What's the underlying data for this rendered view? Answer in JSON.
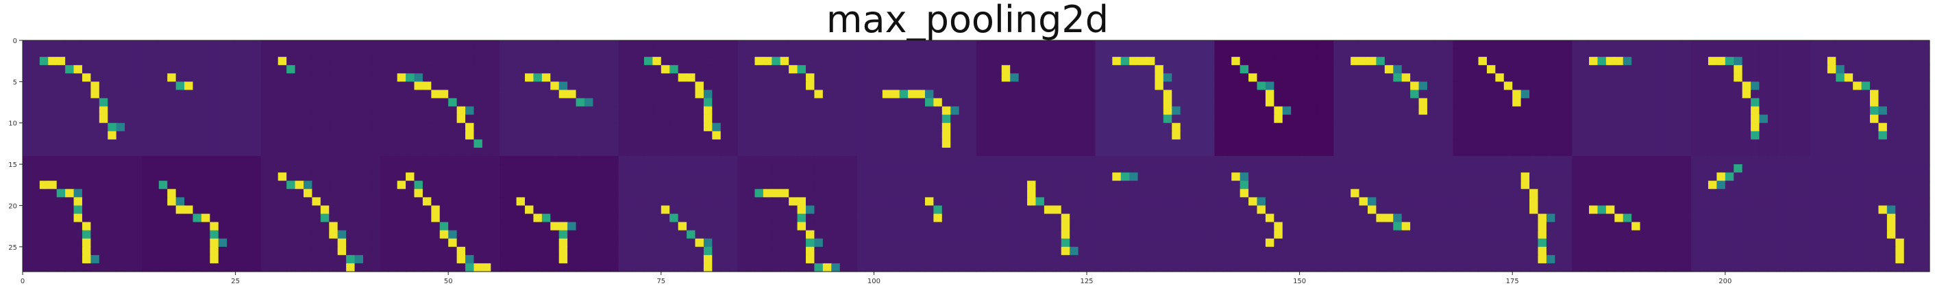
{
  "chart_data": {
    "type": "heatmap",
    "title": "max_pooling2d",
    "xlabel": "",
    "ylabel": "",
    "layer": "max_pooling2d",
    "grid_rows": 2,
    "grid_cols": 16,
    "map_size": 14,
    "xlim": [
      0,
      224
    ],
    "ylim": [
      28,
      0
    ],
    "x_ticks": [
      0,
      25,
      50,
      75,
      100,
      125,
      150,
      175,
      200
    ],
    "y_ticks": [
      0,
      5,
      10,
      15,
      20,
      25
    ],
    "grid": false,
    "colormap": "viridis",
    "tile_levels": [
      [
        0.08,
        0.08,
        0.06,
        0.06,
        0.08,
        0.06,
        0.08,
        0.08,
        0.05,
        0.1,
        0.02,
        0.08,
        0.04,
        0.08,
        0.07,
        0.08
      ],
      [
        0.05,
        0.04,
        0.06,
        0.05,
        0.04,
        0.08,
        0.06,
        0.08,
        0.08,
        0.08,
        0.08,
        0.08,
        0.08,
        0.05,
        0.08,
        0.08
      ]
    ],
    "strokes": [
      {
        "tile": [
          0,
          0
        ],
        "path": [
          [
            2,
            2
          ],
          [
            4,
            2
          ],
          [
            6,
            3
          ],
          [
            8,
            5
          ],
          [
            9,
            8
          ],
          [
            10,
            11
          ]
        ]
      },
      {
        "tile": [
          0,
          1
        ],
        "path": [
          [
            3,
            4
          ],
          [
            5,
            5
          ]
        ]
      },
      {
        "tile": [
          0,
          2
        ],
        "path": [
          [
            2,
            2
          ],
          [
            3,
            3
          ]
        ]
      },
      {
        "tile": [
          0,
          3
        ],
        "path": [
          [
            2,
            4
          ],
          [
            5,
            5
          ],
          [
            7,
            6
          ],
          [
            8,
            7
          ],
          [
            9,
            9
          ],
          [
            10,
            11
          ],
          [
            11,
            12
          ]
        ]
      },
      {
        "tile": [
          0,
          4
        ],
        "path": [
          [
            3,
            4
          ],
          [
            5,
            4
          ],
          [
            6,
            5
          ],
          [
            8,
            6
          ],
          [
            9,
            7
          ]
        ]
      },
      {
        "tile": [
          0,
          5
        ],
        "path": [
          [
            3,
            2
          ],
          [
            6,
            3
          ],
          [
            8,
            4
          ],
          [
            9,
            6
          ],
          [
            10,
            8
          ],
          [
            10,
            10
          ],
          [
            11,
            11
          ]
        ]
      },
      {
        "tile": [
          0,
          6
        ],
        "path": [
          [
            2,
            2
          ],
          [
            5,
            2
          ],
          [
            7,
            3
          ],
          [
            8,
            5
          ],
          [
            9,
            6
          ]
        ]
      },
      {
        "tile": [
          0,
          7
        ],
        "path": [
          [
            3,
            6
          ],
          [
            6,
            6
          ],
          [
            9,
            7
          ],
          [
            10,
            9
          ],
          [
            10,
            12
          ]
        ]
      },
      {
        "tile": [
          0,
          8
        ],
        "path": [
          [
            3,
            3
          ],
          [
            3,
            4
          ]
        ]
      },
      {
        "tile": [
          0,
          9
        ],
        "path": [
          [
            2,
            2
          ],
          [
            6,
            2
          ],
          [
            7,
            3
          ],
          [
            7,
            5
          ],
          [
            8,
            7
          ],
          [
            8,
            9
          ],
          [
            9,
            11
          ]
        ]
      },
      {
        "tile": [
          0,
          10
        ],
        "path": [
          [
            2,
            2
          ],
          [
            3,
            3
          ],
          [
            4,
            4
          ],
          [
            5,
            5
          ],
          [
            6,
            7
          ],
          [
            7,
            9
          ]
        ]
      },
      {
        "tile": [
          0,
          11
        ],
        "path": [
          [
            2,
            2
          ],
          [
            5,
            2
          ],
          [
            6,
            3
          ],
          [
            8,
            4
          ],
          [
            9,
            6
          ],
          [
            10,
            8
          ]
        ]
      },
      {
        "tile": [
          0,
          12
        ],
        "path": [
          [
            3,
            2
          ],
          [
            4,
            3
          ],
          [
            5,
            4
          ],
          [
            6,
            5
          ],
          [
            7,
            6
          ],
          [
            7,
            7
          ]
        ]
      },
      {
        "tile": [
          0,
          13
        ],
        "path": [
          [
            2,
            2
          ],
          [
            5,
            2
          ]
        ]
      },
      {
        "tile": [
          0,
          14
        ],
        "path": [
          [
            2,
            2
          ],
          [
            4,
            2
          ],
          [
            5,
            4
          ],
          [
            6,
            6
          ],
          [
            7,
            8
          ],
          [
            7,
            11
          ]
        ]
      },
      {
        "tile": [
          0,
          15
        ],
        "path": [
          [
            2,
            2
          ],
          [
            2,
            3
          ],
          [
            7,
            6
          ],
          [
            7,
            9
          ],
          [
            8,
            11
          ]
        ]
      },
      {
        "tile": [
          1,
          0
        ],
        "path": [
          [
            2,
            3
          ],
          [
            5,
            4
          ],
          [
            6,
            6
          ],
          [
            7,
            9
          ],
          [
            7,
            12
          ]
        ]
      },
      {
        "tile": [
          1,
          1
        ],
        "path": [
          [
            2,
            3
          ],
          [
            3,
            5
          ],
          [
            5,
            6
          ],
          [
            7,
            7
          ],
          [
            8,
            9
          ],
          [
            8,
            12
          ]
        ]
      },
      {
        "tile": [
          1,
          2
        ],
        "path": [
          [
            2,
            2
          ],
          [
            4,
            3
          ],
          [
            6,
            5
          ],
          [
            10,
            13
          ]
        ]
      },
      {
        "tile": [
          1,
          3
        ],
        "path": [
          [
            2,
            3
          ],
          [
            3,
            2
          ],
          [
            10,
            13
          ],
          [
            12,
            13
          ]
        ]
      },
      {
        "tile": [
          1,
          4
        ],
        "path": [
          [
            2,
            5
          ],
          [
            3,
            6
          ],
          [
            5,
            7
          ],
          [
            7,
            8
          ],
          [
            7,
            12
          ]
        ]
      },
      {
        "tile": [
          1,
          5
        ],
        "path": [
          [
            5,
            6
          ],
          [
            9,
            10
          ],
          [
            10,
            12
          ],
          [
            10,
            13
          ]
        ]
      },
      {
        "tile": [
          1,
          6
        ],
        "path": [
          [
            2,
            4
          ],
          [
            5,
            4
          ],
          [
            7,
            5
          ],
          [
            8,
            12
          ],
          [
            10,
            13
          ]
        ]
      },
      {
        "tile": [
          1,
          7
        ],
        "path": [
          [
            8,
            5
          ],
          [
            9,
            7
          ]
        ]
      },
      {
        "tile": [
          1,
          8
        ],
        "path": [
          [
            6,
            3
          ],
          [
            6,
            5
          ],
          [
            9,
            6
          ],
          [
            10,
            8
          ],
          [
            10,
            11
          ]
        ]
      },
      {
        "tile": [
          1,
          9
        ],
        "path": [
          [
            2,
            2
          ],
          [
            3,
            2
          ]
        ]
      },
      {
        "tile": [
          1,
          10
        ],
        "path": [
          [
            2,
            2
          ],
          [
            3,
            4
          ],
          [
            5,
            6
          ],
          [
            7,
            8
          ],
          [
            6,
            10
          ]
        ]
      },
      {
        "tile": [
          1,
          11
        ],
        "path": [
          [
            2,
            4
          ],
          [
            4,
            6
          ],
          [
            8,
            8
          ]
        ]
      },
      {
        "tile": [
          1,
          12
        ],
        "path": [
          [
            8,
            2
          ],
          [
            9,
            5
          ],
          [
            10,
            8
          ],
          [
            10,
            12
          ]
        ]
      },
      {
        "tile": [
          1,
          13
        ],
        "path": [
          [
            2,
            6
          ],
          [
            4,
            6
          ],
          [
            6,
            7
          ],
          [
            7,
            8
          ]
        ]
      },
      {
        "tile": [
          1,
          14
        ],
        "path": [
          [
            2,
            3
          ],
          [
            3,
            2
          ],
          [
            5,
            1
          ]
        ]
      },
      {
        "tile": [
          1,
          15
        ],
        "path": [
          [
            8,
            6
          ],
          [
            9,
            8
          ],
          [
            10,
            12
          ]
        ]
      }
    ]
  }
}
